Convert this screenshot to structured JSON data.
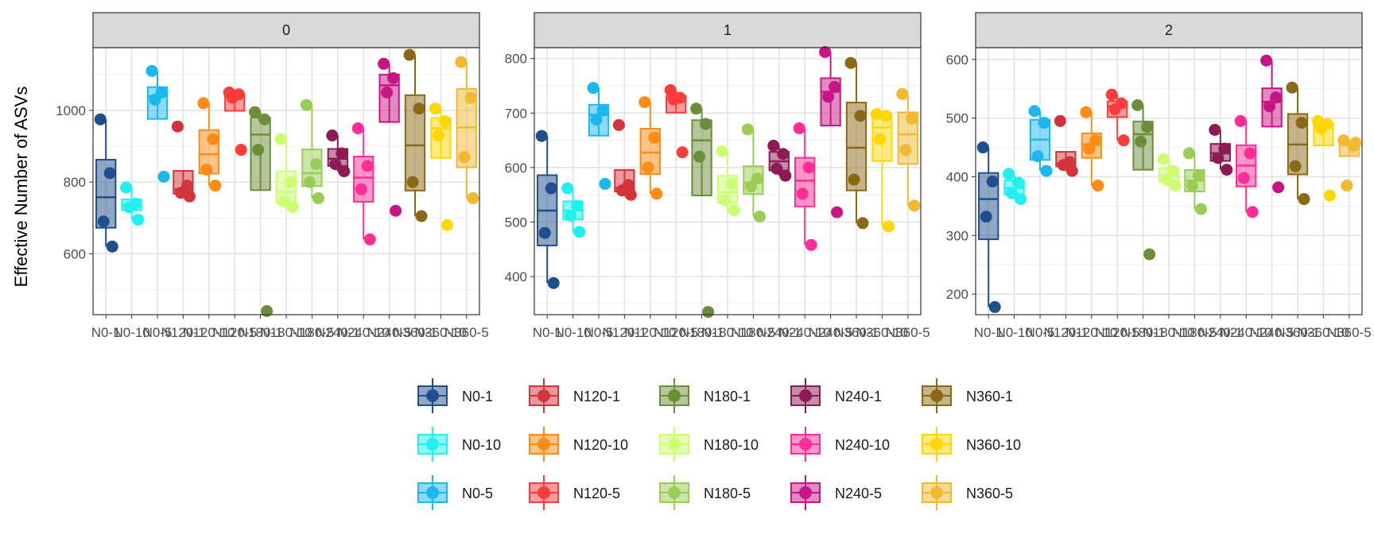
{
  "chart_data": {
    "type": "boxplot",
    "ylabel": "Effective Number of ASVs",
    "xlabel": "",
    "categories": [
      "N0-1",
      "N0-10",
      "N0-5",
      "N120-1",
      "N120-10",
      "N120-5",
      "N180-1",
      "N180-10",
      "N180-5",
      "N240-1",
      "N240-10",
      "N240-5",
      "N360-1",
      "N360-10",
      "N360-5"
    ],
    "colors": {
      "N0-1": "#1F4E8C",
      "N0-10": "#22F0F0",
      "N0-5": "#1BB8F0",
      "N120-1": "#D2343A",
      "N120-10": "#FF8C12",
      "N120-5": "#FF3B3B",
      "N180-1": "#6B8E3A",
      "N180-10": "#CCFF70",
      "N180-5": "#9ACD55",
      "N240-1": "#8B1A55",
      "N240-10": "#FF2D95",
      "N240-5": "#C71585",
      "N360-1": "#8B6914",
      "N360-10": "#FFD700",
      "N360-5": "#F2B830"
    },
    "panels": [
      {
        "strip": "0",
        "ylim": [
          430,
          1175
        ],
        "yticks": [
          600,
          800,
          1000
        ],
        "groups": [
          {
            "name": "N0-1",
            "points": [
              975,
              825,
              690,
              620
            ]
          },
          {
            "name": "N0-10",
            "points": [
              785,
              740,
              730,
              695
            ]
          },
          {
            "name": "N0-5",
            "points": [
              1110,
              1050,
              1030,
              815
            ]
          },
          {
            "name": "N120-1",
            "points": [
              955,
              790,
              770,
              760
            ]
          },
          {
            "name": "N120-10",
            "points": [
              1020,
              920,
              835,
              790
            ]
          },
          {
            "name": "N120-5",
            "points": [
              1050,
              1045,
              1035,
              890
            ]
          },
          {
            "name": "N180-1",
            "points": [
              995,
              975,
              890,
              440
            ]
          },
          {
            "name": "N180-10",
            "points": [
              920,
              800,
              745,
              730
            ]
          },
          {
            "name": "N180-5",
            "points": [
              1015,
              850,
              800,
              755
            ]
          },
          {
            "name": "N240-1",
            "points": [
              930,
              880,
              850,
              830
            ]
          },
          {
            "name": "N240-10",
            "points": [
              950,
              845,
              780,
              640
            ]
          },
          {
            "name": "N240-5",
            "points": [
              1130,
              1090,
              1050,
              720
            ]
          },
          {
            "name": "N360-1",
            "points": [
              1155,
              1005,
              800,
              705
            ]
          },
          {
            "name": "N360-10",
            "points": [
              1005,
              970,
              930,
              680
            ]
          },
          {
            "name": "N360-5",
            "points": [
              1135,
              1035,
              870,
              755
            ]
          }
        ]
      },
      {
        "strip": "1",
        "ylim": [
          330,
          820
        ],
        "yticks": [
          400,
          500,
          600,
          700,
          800
        ],
        "groups": [
          {
            "name": "N0-1",
            "points": [
              658,
              562,
              480,
              388
            ]
          },
          {
            "name": "N0-10",
            "points": [
              562,
              530,
              512,
              482
            ]
          },
          {
            "name": "N0-5",
            "points": [
              746,
              705,
              688,
              570
            ]
          },
          {
            "name": "N120-1",
            "points": [
              678,
              568,
              558,
              550
            ]
          },
          {
            "name": "N120-10",
            "points": [
              720,
              655,
              600,
              552
            ]
          },
          {
            "name": "N120-5",
            "points": [
              742,
              728,
              725,
              628
            ]
          },
          {
            "name": "N180-1",
            "points": [
              708,
              680,
              620,
              335
            ]
          },
          {
            "name": "N180-10",
            "points": [
              630,
              570,
              540,
              522
            ]
          },
          {
            "name": "N180-5",
            "points": [
              670,
              580,
              565,
              510
            ]
          },
          {
            "name": "N240-1",
            "points": [
              640,
              625,
              598,
              585
            ]
          },
          {
            "name": "N240-10",
            "points": [
              672,
              600,
              552,
              458
            ]
          },
          {
            "name": "N240-5",
            "points": [
              812,
              748,
              730,
              518
            ]
          },
          {
            "name": "N360-1",
            "points": [
              792,
              695,
              578,
              498
            ]
          },
          {
            "name": "N360-10",
            "points": [
              698,
              695,
              652,
              492
            ]
          },
          {
            "name": "N360-5",
            "points": [
              735,
              690,
              632,
              530
            ]
          }
        ]
      },
      {
        "strip": "2",
        "ylim": [
          165,
          620
        ],
        "yticks": [
          200,
          300,
          400,
          500,
          600
        ],
        "groups": [
          {
            "name": "N0-1",
            "points": [
              450,
              392,
              332,
              178
            ]
          },
          {
            "name": "N0-10",
            "points": [
              405,
              390,
              372,
              362
            ]
          },
          {
            "name": "N0-5",
            "points": [
              512,
              492,
              435,
              410
            ]
          },
          {
            "name": "N120-1",
            "points": [
              495,
              425,
              420,
              410
            ]
          },
          {
            "name": "N120-10",
            "points": [
              510,
              462,
              448,
              385
            ]
          },
          {
            "name": "N120-5",
            "points": [
              540,
              525,
              515,
              462
            ]
          },
          {
            "name": "N180-1",
            "points": [
              522,
              485,
              460,
              268
            ]
          },
          {
            "name": "N180-10",
            "points": [
              430,
              410,
              395,
              385
            ]
          },
          {
            "name": "N180-5",
            "points": [
              440,
              402,
              385,
              345
            ]
          },
          {
            "name": "N240-1",
            "points": [
              480,
              448,
              432,
              412
            ]
          },
          {
            "name": "N240-10",
            "points": [
              495,
              440,
              398,
              340
            ]
          },
          {
            "name": "N240-5",
            "points": [
              598,
              535,
              520,
              382
            ]
          },
          {
            "name": "N360-1",
            "points": [
              552,
              492,
              418,
              362
            ]
          },
          {
            "name": "N360-10",
            "points": [
              495,
              490,
              482,
              368
            ]
          },
          {
            "name": "N360-5",
            "points": [
              462,
              452,
              385,
              458
            ]
          }
        ]
      }
    ],
    "legend": {
      "placement": "bottom",
      "columns": [
        [
          "N0-1",
          "N0-10",
          "N0-5"
        ],
        [
          "N120-1",
          "N120-10",
          "N120-5"
        ],
        [
          "N180-1",
          "N180-10",
          "N180-5"
        ],
        [
          "N240-1",
          "N240-10",
          "N240-5"
        ],
        [
          "N360-1",
          "N360-10",
          "N360-5"
        ]
      ]
    }
  }
}
